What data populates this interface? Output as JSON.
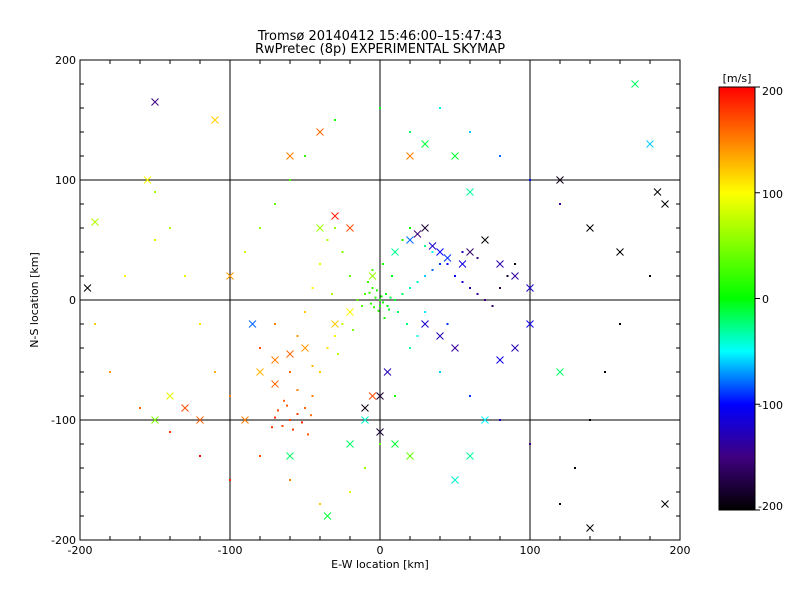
{
  "chart_data": {
    "type": "scatter",
    "title": "Tromsø 20140412 15:46:00–15:47:43",
    "subtitle": "RwPretec (8p) EXPERIMENTAL SKYMAP",
    "xlabel": "E-W location [km]",
    "ylabel": "N-S location [km]",
    "xlim": [
      -200,
      200
    ],
    "ylim": [
      -200,
      200
    ],
    "x_ticks": [
      "-200",
      "-100",
      "0",
      "100",
      "200"
    ],
    "y_ticks": [
      "-200",
      "-100",
      "0",
      "100",
      "200"
    ],
    "grid": true,
    "colorbar": {
      "label": "[m/s]",
      "range": [
        -200,
        200
      ],
      "ticks": [
        "200",
        "100",
        "0",
        "-100",
        "-200"
      ]
    },
    "series": [
      {
        "marker": "dot",
        "points": [
          [
            -60,
            -100,
            180
          ],
          [
            -55,
            -95,
            175
          ],
          [
            -65,
            -105,
            170
          ],
          [
            -50,
            -90,
            160
          ],
          [
            -70,
            -98,
            185
          ],
          [
            -45,
            -80,
            150
          ],
          [
            -40,
            -60,
            120
          ],
          [
            -35,
            -40,
            110
          ],
          [
            -30,
            -30,
            95
          ],
          [
            -25,
            -20,
            80
          ],
          [
            -20,
            -10,
            60
          ],
          [
            -15,
            0,
            40
          ],
          [
            -10,
            5,
            30
          ],
          [
            -5,
            10,
            20
          ],
          [
            0,
            0,
            10
          ],
          [
            5,
            -5,
            0
          ],
          [
            10,
            0,
            -10
          ],
          [
            15,
            5,
            -20
          ],
          [
            20,
            10,
            -30
          ],
          [
            25,
            15,
            -40
          ],
          [
            30,
            20,
            -60
          ],
          [
            35,
            25,
            -80
          ],
          [
            40,
            30,
            -90
          ],
          [
            45,
            30,
            -100
          ],
          [
            50,
            20,
            -110
          ],
          [
            55,
            15,
            -120
          ],
          [
            60,
            10,
            -130
          ],
          [
            65,
            5,
            -140
          ],
          [
            70,
            0,
            -150
          ],
          [
            75,
            -5,
            -160
          ],
          [
            80,
            10,
            -170
          ],
          [
            85,
            20,
            -180
          ],
          [
            90,
            30,
            -190
          ],
          [
            -80,
            -40,
            170
          ],
          [
            -70,
            -20,
            150
          ],
          [
            -60,
            -60,
            160
          ],
          [
            -55,
            -30,
            140
          ],
          [
            -50,
            -10,
            120
          ],
          [
            -45,
            10,
            100
          ],
          [
            -40,
            30,
            90
          ],
          [
            -35,
            50,
            70
          ],
          [
            -30,
            60,
            60
          ],
          [
            -25,
            40,
            50
          ],
          [
            -20,
            20,
            40
          ],
          [
            10,
            40,
            20
          ],
          [
            15,
            50,
            10
          ],
          [
            20,
            60,
            0
          ],
          [
            25,
            55,
            -10
          ],
          [
            30,
            45,
            -30
          ],
          [
            35,
            40,
            -50
          ],
          [
            -90,
            -100,
            175
          ],
          [
            -100,
            -80,
            150
          ],
          [
            -110,
            -60,
            130
          ],
          [
            -120,
            -20,
            110
          ],
          [
            -130,
            20,
            90
          ],
          [
            -140,
            60,
            70
          ],
          [
            -150,
            90,
            60
          ],
          [
            -90,
            40,
            80
          ],
          [
            -80,
            60,
            60
          ],
          [
            -70,
            80,
            40
          ],
          [
            -60,
            100,
            30
          ],
          [
            -50,
            120,
            20
          ],
          [
            -40,
            140,
            10
          ],
          [
            -30,
            150,
            5
          ],
          [
            0,
            160,
            -10
          ],
          [
            20,
            140,
            -20
          ],
          [
            40,
            160,
            -40
          ],
          [
            60,
            140,
            -60
          ],
          [
            80,
            120,
            -80
          ],
          [
            100,
            100,
            -100
          ],
          [
            120,
            80,
            -140
          ],
          [
            140,
            60,
            -170
          ],
          [
            160,
            40,
            -190
          ],
          [
            180,
            20,
            -200
          ],
          [
            160,
            -20,
            -200
          ],
          [
            150,
            -60,
            -200
          ],
          [
            140,
            -100,
            -200
          ],
          [
            130,
            -140,
            -200
          ],
          [
            120,
            -170,
            -200
          ],
          [
            100,
            -120,
            -150
          ],
          [
            80,
            -100,
            -120
          ],
          [
            60,
            -80,
            -90
          ],
          [
            40,
            -60,
            -60
          ],
          [
            20,
            -40,
            -30
          ],
          [
            10,
            -80,
            10
          ],
          [
            0,
            -120,
            40
          ],
          [
            -10,
            -140,
            60
          ],
          [
            -20,
            -160,
            90
          ],
          [
            -40,
            -170,
            120
          ],
          [
            -60,
            -150,
            150
          ],
          [
            -80,
            -130,
            170
          ],
          [
            -100,
            -150,
            190
          ],
          [
            -120,
            -130,
            195
          ],
          [
            -140,
            -110,
            180
          ],
          [
            -160,
            -90,
            160
          ],
          [
            -180,
            -60,
            140
          ],
          [
            -190,
            -20,
            120
          ],
          [
            -170,
            20,
            100
          ],
          [
            -150,
            50,
            80
          ],
          [
            -5,
            25,
            30
          ],
          [
            2,
            30,
            10
          ],
          [
            8,
            20,
            -5
          ],
          [
            -8,
            15,
            25
          ],
          [
            3,
            -15,
            5
          ],
          [
            12,
            -10,
            -15
          ],
          [
            -12,
            -5,
            35
          ],
          [
            18,
            -20,
            -25
          ],
          [
            -18,
            -25,
            50
          ],
          [
            25,
            -30,
            -45
          ],
          [
            -28,
            -45,
            70
          ],
          [
            30,
            -10,
            -55
          ],
          [
            -32,
            5,
            65
          ],
          [
            45,
            -20,
            -90
          ],
          [
            -45,
            -55,
            130
          ],
          [
            55,
            40,
            -130
          ],
          [
            -55,
            -75,
            150
          ],
          [
            65,
            35,
            -150
          ],
          [
            -62,
            -88,
            165
          ],
          [
            -58,
            -108,
            178
          ],
          [
            -48,
            -112,
            168
          ],
          [
            -68,
            -92,
            172
          ],
          [
            -52,
            -102,
            188
          ],
          [
            -64,
            -84,
            160
          ],
          [
            -72,
            -106,
            182
          ],
          [
            -46,
            -96,
            158
          ],
          [
            0,
            -5,
            10
          ],
          [
            -3,
            2,
            15
          ],
          [
            4,
            5,
            -5
          ],
          [
            -6,
            -3,
            20
          ],
          [
            6,
            -8,
            -10
          ],
          [
            -2,
            8,
            12
          ],
          [
            1,
            3,
            0
          ],
          [
            -4,
            -6,
            18
          ],
          [
            7,
            2,
            -12
          ],
          [
            -7,
            6,
            22
          ],
          [
            2,
            -2,
            5
          ],
          [
            -1,
            -9,
            14
          ]
        ]
      },
      {
        "marker": "x",
        "points": [
          [
            -150,
            165,
            -150
          ],
          [
            -110,
            150,
            120
          ],
          [
            -100,
            20,
            140
          ],
          [
            -130,
            -90,
            170
          ],
          [
            -120,
            -100,
            160
          ],
          [
            -90,
            -100,
            150
          ],
          [
            -80,
            -60,
            130
          ],
          [
            -70,
            -50,
            150
          ],
          [
            -60,
            -45,
            160
          ],
          [
            -50,
            -40,
            140
          ],
          [
            -30,
            -20,
            120
          ],
          [
            -20,
            -10,
            100
          ],
          [
            -5,
            20,
            60
          ],
          [
            10,
            40,
            -30
          ],
          [
            20,
            50,
            -80
          ],
          [
            25,
            55,
            -150
          ],
          [
            30,
            60,
            -180
          ],
          [
            35,
            45,
            -120
          ],
          [
            40,
            40,
            -100
          ],
          [
            45,
            35,
            -90
          ],
          [
            55,
            30,
            -110
          ],
          [
            60,
            40,
            -160
          ],
          [
            70,
            50,
            -200
          ],
          [
            80,
            30,
            -130
          ],
          [
            90,
            20,
            -140
          ],
          [
            100,
            10,
            -120
          ],
          [
            120,
            100,
            -190
          ],
          [
            140,
            60,
            -200
          ],
          [
            160,
            40,
            -200
          ],
          [
            185,
            90,
            -200
          ],
          [
            190,
            80,
            -200
          ],
          [
            180,
            130,
            -60
          ],
          [
            170,
            180,
            -20
          ],
          [
            120,
            -60,
            -20
          ],
          [
            140,
            -190,
            -200
          ],
          [
            190,
            -170,
            -200
          ],
          [
            70,
            -100,
            -50
          ],
          [
            60,
            -130,
            -30
          ],
          [
            50,
            -150,
            -40
          ],
          [
            -20,
            -120,
            -20
          ],
          [
            -10,
            -100,
            -40
          ],
          [
            0,
            -110,
            -180
          ],
          [
            10,
            -120,
            -10
          ],
          [
            20,
            -130,
            40
          ],
          [
            -35,
            -180,
            -10
          ],
          [
            -60,
            -130,
            -20
          ],
          [
            -140,
            -80,
            90
          ],
          [
            -150,
            -100,
            50
          ],
          [
            -190,
            65,
            70
          ],
          [
            -195,
            10,
            -200
          ],
          [
            -155,
            100,
            100
          ],
          [
            -60,
            120,
            150
          ],
          [
            -40,
            140,
            160
          ],
          [
            30,
            130,
            -10
          ],
          [
            50,
            120,
            -10
          ],
          [
            20,
            120,
            150
          ],
          [
            60,
            90,
            -30
          ],
          [
            -70,
            -70,
            160
          ],
          [
            -85,
            -20,
            -80
          ],
          [
            -40,
            60,
            60
          ],
          [
            -30,
            70,
            190
          ],
          [
            -20,
            60,
            170
          ],
          [
            30,
            -20,
            -120
          ],
          [
            40,
            -30,
            -130
          ],
          [
            50,
            -40,
            -140
          ],
          [
            80,
            -50,
            -110
          ],
          [
            90,
            -40,
            -130
          ],
          [
            100,
            -20,
            -110
          ],
          [
            -10,
            -90,
            -190
          ],
          [
            -5,
            -80,
            170
          ],
          [
            0,
            -80,
            -180
          ],
          [
            5,
            -60,
            -130
          ]
        ]
      }
    ]
  }
}
